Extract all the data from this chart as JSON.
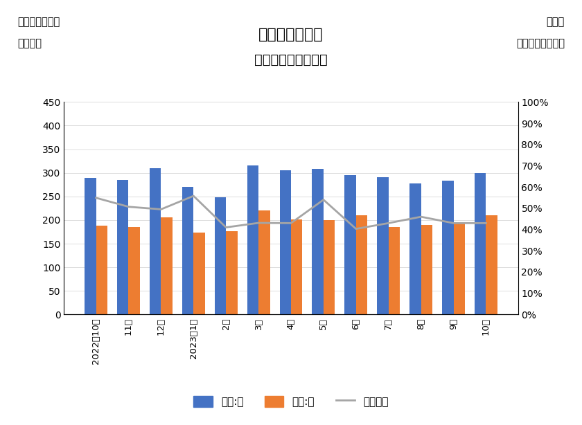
{
  "categories": [
    "2022年10月",
    "11月",
    "12月",
    "2023年1月",
    "2月",
    "3月",
    "4月",
    "5月",
    "6月",
    "7月",
    "8月",
    "9月",
    "10月"
  ],
  "values_many": [
    290,
    285,
    310,
    270,
    248,
    315,
    305,
    308,
    295,
    291,
    278,
    284,
    300
  ],
  "values_few": [
    188,
    185,
    206,
    173,
    176,
    220,
    202,
    200,
    210,
    185,
    190,
    193,
    210
  ],
  "diff_pct": [
    0.549,
    0.507,
    0.495,
    0.558,
    0.41,
    0.431,
    0.43,
    0.54,
    0.403,
    0.43,
    0.46,
    0.43,
    0.43
  ],
  "color_many": "#4472c4",
  "color_few": "#ed7d31",
  "color_line": "#a5a5a5",
  "title_main": "坪単価売上平均",
  "title_sub": "口コミ件数の多少別",
  "top_left_line1": "坪単価売上税別",
  "top_left_line2": "（千円）",
  "top_right_line1": "口コミ",
  "top_right_line2": "多対少比較（％）",
  "ylim_left": [
    0,
    450
  ],
  "ylim_right": [
    0,
    1.0
  ],
  "yticks_left": [
    0,
    50,
    100,
    150,
    200,
    250,
    300,
    350,
    400,
    450
  ],
  "yticks_right": [
    0.0,
    0.1,
    0.2,
    0.3,
    0.4,
    0.5,
    0.6,
    0.7,
    0.8,
    0.9,
    1.0
  ],
  "legend_many": "全部:多",
  "legend_few": "全部:少",
  "legend_line": "差（％）",
  "bar_width": 0.35,
  "background_color": "#ffffff"
}
